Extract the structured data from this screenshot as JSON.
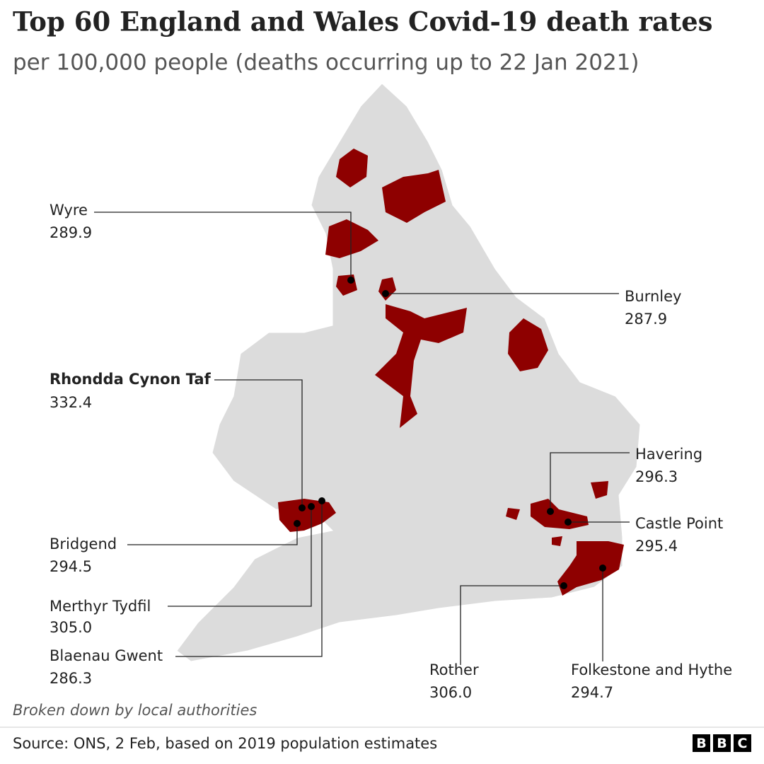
{
  "header": {
    "title": "Top 60 England and Wales Covid-19 death rates",
    "subtitle": "per 100,000 people (deaths occurring up to 22 Jan 2021)"
  },
  "labels": [
    {
      "name": "Wyre",
      "value": "289.9"
    },
    {
      "name": "Burnley",
      "value": "287.9"
    },
    {
      "name": "Rhondda Cynon Taf",
      "value": "332.4"
    },
    {
      "name": "Havering",
      "value": "296.3"
    },
    {
      "name": "Castle Point",
      "value": "295.4"
    },
    {
      "name": "Bridgend",
      "value": "294.5"
    },
    {
      "name": "Merthyr Tydfil",
      "value": "305.0"
    },
    {
      "name": "Blaenau Gwent",
      "value": "286.3"
    },
    {
      "name": "Rother",
      "value": "306.0"
    },
    {
      "name": "Folkestone and Hythe",
      "value": "294.7"
    }
  ],
  "footer": {
    "note": "Broken down by local authorities",
    "source": "Source: ONS, 2 Feb, based on 2019 population estimates",
    "logo": [
      "B",
      "B",
      "C"
    ]
  }
}
